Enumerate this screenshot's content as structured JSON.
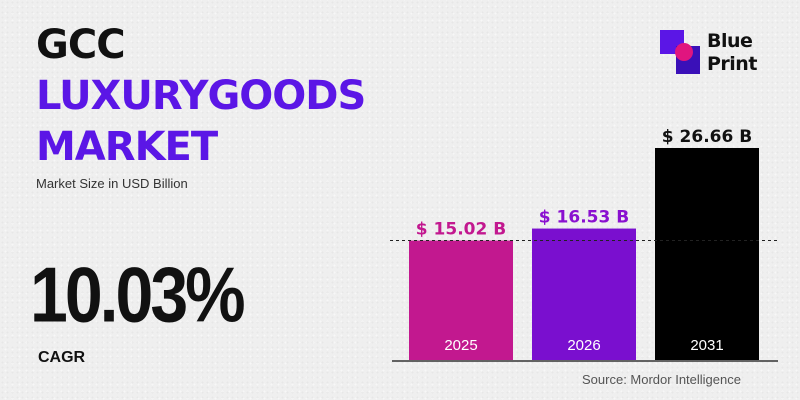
{
  "header": {
    "line1": "GCC",
    "line2": "LUXURYGOODS",
    "line3": "MARKET",
    "subtitle": "Market Size in USD Billion"
  },
  "cagr": {
    "value": "10.03%",
    "label": "CAGR"
  },
  "logo": {
    "line1": "Blue",
    "line2": "Print"
  },
  "source": "Source: Mordor Intelligence",
  "chart_data": {
    "type": "bar",
    "categories": [
      "2025",
      "2026",
      "2031"
    ],
    "values": [
      15.02,
      16.53,
      26.66
    ],
    "data_labels": [
      "$ 15.02 B",
      "$ 16.53 B",
      "$ 26.66 B"
    ],
    "colors": [
      "#c2188f",
      "#7a0fcf",
      "#000000"
    ],
    "label_colors": [
      "#c2188f",
      "#8a10d0",
      "#111111"
    ],
    "ylim": [
      0,
      26.66
    ],
    "reference_line": 15.02,
    "grid": false,
    "legend": "none",
    "title": "",
    "xlabel": "",
    "ylabel": ""
  }
}
